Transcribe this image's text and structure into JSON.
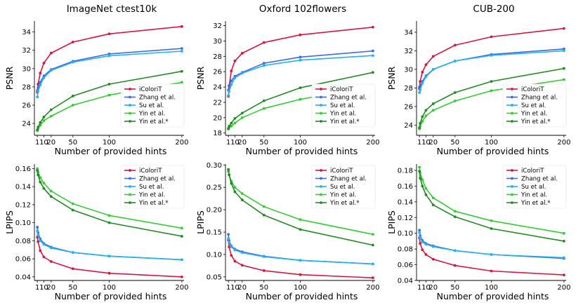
{
  "figure": {
    "column_titles": [
      "ImageNet ctest10k",
      "Oxford 102flowers",
      "CUB-200"
    ],
    "series_names": [
      "iColoriT",
      "Zhang et al.",
      "Su et al.",
      "Yin et al.",
      "Yin et al.*"
    ],
    "series_colors": [
      "#dc143c",
      "#4169e1",
      "#1fb3f0",
      "#32cd32",
      "#228b22"
    ]
  },
  "chart_data": [
    {
      "type": "line",
      "title": "ImageNet ctest10k",
      "xlabel": "Number of provided hints",
      "ylabel": "PSNR",
      "x": [
        1,
        2,
        5,
        10,
        20,
        50,
        100,
        200
      ],
      "xticks": [
        1,
        10,
        20,
        50,
        100,
        200
      ],
      "ylim": [
        22.7,
        35.2
      ],
      "yticks": [
        24,
        26,
        28,
        30,
        32,
        34
      ],
      "tick_decimals": 0,
      "legend_position": "center-right",
      "series": [
        {
          "name": "iColoriT",
          "values": [
            27.4,
            28.3,
            29.5,
            30.6,
            31.7,
            32.9,
            33.8,
            34.6
          ]
        },
        {
          "name": "Zhang et al.",
          "values": [
            27.6,
            27.9,
            28.5,
            29.2,
            29.9,
            30.8,
            31.6,
            32.2
          ]
        },
        {
          "name": "Su et al.",
          "values": [
            26.9,
            27.5,
            28.2,
            29.0,
            29.8,
            30.7,
            31.4,
            31.9
          ]
        },
        {
          "name": "Yin et al.",
          "values": [
            23.2,
            23.4,
            23.8,
            24.3,
            24.8,
            26.0,
            27.1,
            28.5
          ]
        },
        {
          "name": "Yin et al.*",
          "values": [
            23.3,
            23.6,
            24.1,
            24.7,
            25.5,
            27.0,
            28.3,
            29.7
          ]
        }
      ]
    },
    {
      "type": "line",
      "title": "Oxford 102flowers",
      "xlabel": "Number of provided hints",
      "ylabel": "PSNR",
      "x": [
        1,
        2,
        5,
        10,
        20,
        50,
        100,
        200
      ],
      "xticks": [
        1,
        10,
        20,
        50,
        100,
        200
      ],
      "ylim": [
        17.7,
        32.6
      ],
      "yticks": [
        18,
        20,
        22,
        24,
        26,
        28,
        30,
        32
      ],
      "tick_decimals": 0,
      "legend_position": "center-right",
      "series": [
        {
          "name": "iColoriT",
          "values": [
            22.8,
            24.1,
            26.1,
            27.4,
            28.4,
            29.8,
            30.8,
            31.8
          ]
        },
        {
          "name": "Zhang et al.",
          "values": [
            23.6,
            24.2,
            24.8,
            25.4,
            25.9,
            27.1,
            27.9,
            28.7
          ]
        },
        {
          "name": "Su et al.",
          "values": [
            22.9,
            23.4,
            24.3,
            25.2,
            25.8,
            26.8,
            27.5,
            28.1
          ]
        },
        {
          "name": "Yin et al.",
          "values": [
            18.5,
            18.7,
            18.9,
            19.3,
            20.0,
            21.2,
            22.4,
            24.1
          ]
        },
        {
          "name": "Yin et al.*",
          "values": [
            18.6,
            18.9,
            19.3,
            19.9,
            20.6,
            22.2,
            23.9,
            25.9
          ]
        }
      ]
    },
    {
      "type": "line",
      "title": "CUB-200",
      "xlabel": "Number of provided hints",
      "ylabel": "PSNR",
      "x": [
        1,
        2,
        5,
        10,
        20,
        50,
        100,
        200
      ],
      "xticks": [
        1,
        10,
        20,
        50,
        100,
        200
      ],
      "ylim": [
        22.9,
        35.2
      ],
      "yticks": [
        24,
        26,
        28,
        30,
        32,
        34
      ],
      "tick_decimals": 0,
      "legend_position": "center-right",
      "series": [
        {
          "name": "iColoriT",
          "values": [
            27.9,
            28.7,
            29.7,
            30.5,
            31.4,
            32.6,
            33.5,
            34.4
          ]
        },
        {
          "name": "Zhang et al.",
          "values": [
            28.1,
            28.2,
            28.7,
            29.3,
            30.0,
            30.9,
            31.6,
            32.2
          ]
        },
        {
          "name": "Su et al.",
          "values": [
            27.5,
            27.8,
            28.5,
            29.2,
            30.0,
            30.9,
            31.5,
            32.0
          ]
        },
        {
          "name": "Yin et al.",
          "values": [
            23.6,
            23.9,
            24.4,
            25.0,
            25.6,
            26.6,
            27.7,
            28.9
          ]
        },
        {
          "name": "Yin et al.*",
          "values": [
            23.7,
            24.2,
            24.9,
            25.6,
            26.3,
            27.5,
            28.7,
            30.1
          ]
        }
      ]
    },
    {
      "type": "line",
      "title": "",
      "xlabel": "Number of provided hints",
      "ylabel": "LPIPS",
      "x": [
        1,
        2,
        5,
        10,
        20,
        50,
        100,
        200
      ],
      "xticks": [
        1,
        10,
        20,
        50,
        100,
        200
      ],
      "ylim": [
        0.036,
        0.165
      ],
      "yticks": [
        0.04,
        0.06,
        0.08,
        0.1,
        0.12,
        0.14,
        0.16
      ],
      "tick_decimals": 2,
      "legend_position": "top-right",
      "series": [
        {
          "name": "iColoriT",
          "values": [
            0.084,
            0.079,
            0.069,
            0.062,
            0.057,
            0.049,
            0.044,
            0.04
          ]
        },
        {
          "name": "Zhang et al.",
          "values": [
            0.095,
            0.089,
            0.082,
            0.077,
            0.073,
            0.067,
            0.063,
            0.059
          ]
        },
        {
          "name": "Su et al.",
          "values": [
            0.091,
            0.086,
            0.08,
            0.076,
            0.072,
            0.067,
            0.063,
            0.059
          ]
        },
        {
          "name": "Yin et al.",
          "values": [
            0.16,
            0.156,
            0.15,
            0.144,
            0.135,
            0.121,
            0.108,
            0.094
          ]
        },
        {
          "name": "Yin et al.*",
          "values": [
            0.158,
            0.153,
            0.145,
            0.138,
            0.129,
            0.114,
            0.1,
            0.085
          ]
        }
      ]
    },
    {
      "type": "line",
      "title": "",
      "xlabel": "Number of provided hints",
      "ylabel": "LPIPS",
      "x": [
        1,
        2,
        5,
        10,
        20,
        50,
        100,
        200
      ],
      "xticks": [
        1,
        10,
        20,
        50,
        100,
        200
      ],
      "ylim": [
        0.042,
        0.302
      ],
      "yticks": [
        0.05,
        0.1,
        0.15,
        0.2,
        0.25,
        0.3
      ],
      "tick_decimals": 2,
      "legend_position": "top-right",
      "series": [
        {
          "name": "iColoriT",
          "values": [
            0.132,
            0.117,
            0.098,
            0.085,
            0.076,
            0.064,
            0.055,
            0.048
          ]
        },
        {
          "name": "Zhang et al.",
          "values": [
            0.145,
            0.131,
            0.119,
            0.112,
            0.106,
            0.096,
            0.087,
            0.079
          ]
        },
        {
          "name": "Su et al.",
          "values": [
            0.136,
            0.127,
            0.117,
            0.11,
            0.104,
            0.095,
            0.087,
            0.079
          ]
        },
        {
          "name": "Yin et al.",
          "values": [
            0.286,
            0.278,
            0.264,
            0.25,
            0.236,
            0.207,
            0.178,
            0.145
          ]
        },
        {
          "name": "Yin et al.*",
          "values": [
            0.29,
            0.278,
            0.259,
            0.24,
            0.222,
            0.188,
            0.156,
            0.121
          ]
        }
      ]
    },
    {
      "type": "line",
      "title": "",
      "xlabel": "Number of provided hints",
      "ylabel": "LPIPS",
      "x": [
        1,
        2,
        5,
        10,
        20,
        50,
        100,
        200
      ],
      "xticks": [
        1,
        10,
        20,
        50,
        100,
        200
      ],
      "ylim": [
        0.04,
        0.188
      ],
      "yticks": [
        0.04,
        0.06,
        0.08,
        0.1,
        0.12,
        0.14,
        0.16,
        0.18
      ],
      "tick_decimals": 2,
      "legend_position": "top-right",
      "series": [
        {
          "name": "iColoriT",
          "values": [
            0.094,
            0.087,
            0.079,
            0.073,
            0.067,
            0.059,
            0.052,
            0.047
          ]
        },
        {
          "name": "Zhang et al.",
          "values": [
            0.104,
            0.097,
            0.091,
            0.087,
            0.084,
            0.078,
            0.073,
            0.068
          ]
        },
        {
          "name": "Su et al.",
          "values": [
            0.101,
            0.094,
            0.089,
            0.086,
            0.083,
            0.078,
            0.073,
            0.069
          ]
        },
        {
          "name": "Yin et al.",
          "values": [
            0.184,
            0.177,
            0.168,
            0.157,
            0.145,
            0.128,
            0.116,
            0.1
          ]
        },
        {
          "name": "Yin et al.*",
          "values": [
            0.179,
            0.17,
            0.16,
            0.149,
            0.136,
            0.121,
            0.106,
            0.09
          ]
        }
      ]
    }
  ]
}
